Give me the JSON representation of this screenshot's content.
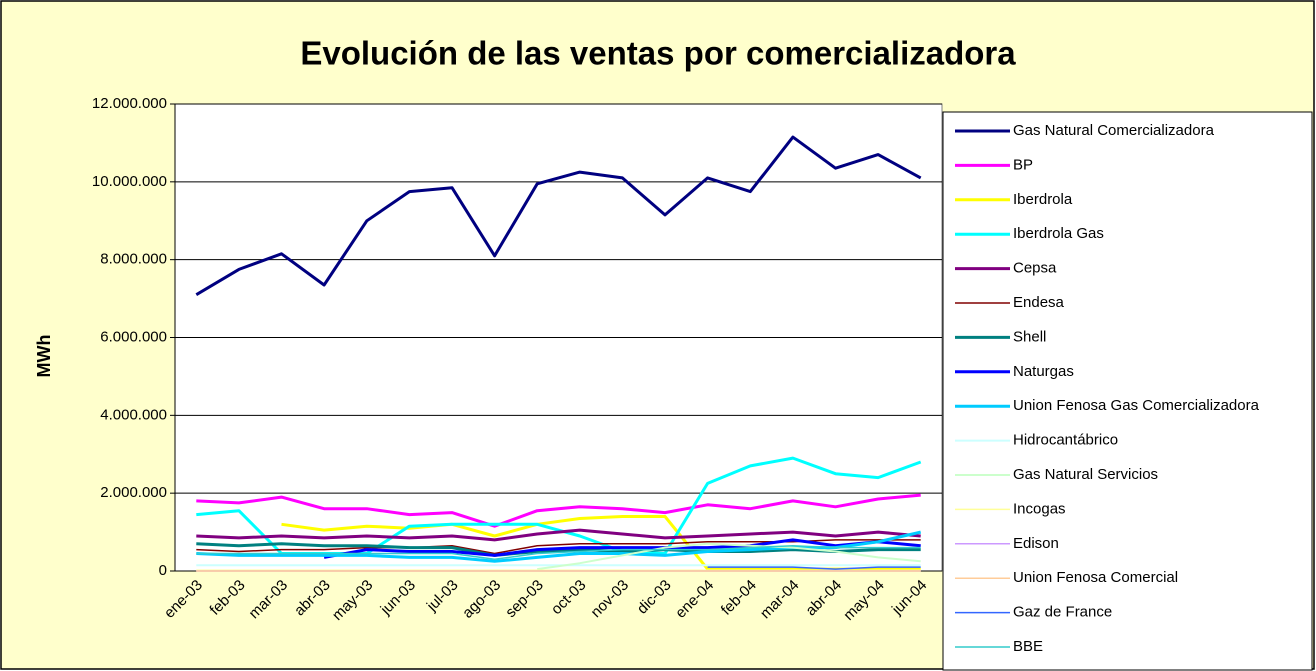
{
  "chart_data": {
    "type": "line",
    "title": "Evolución de las ventas por comercializadora",
    "y_label": "MWh",
    "categories": [
      "ene-03",
      "feb-03",
      "mar-03",
      "abr-03",
      "may-03",
      "jun-03",
      "jul-03",
      "ago-03",
      "sep-03",
      "oct-03",
      "nov-03",
      "dic-03",
      "ene-04",
      "feb-04",
      "mar-04",
      "abr-04",
      "may-04",
      "jun-04"
    ],
    "ylim": [
      0,
      12000000
    ],
    "yticks": [
      0,
      {
        "value": 2000000,
        "label": "2.000.000"
      },
      {
        "value": 4000000,
        "label": "4.000.000"
      },
      {
        "value": 6000000,
        "label": "6.000.000"
      },
      {
        "value": 8000000,
        "label": "8.000.000"
      },
      {
        "value": 10000000,
        "label": "10.000.000"
      },
      {
        "value": 12000000,
        "label": "12.000.000"
      }
    ],
    "grid": true,
    "legend": "right",
    "series": [
      {
        "name": "Gas Natural Comercializadora",
        "color": "#000080",
        "values": [
          7100000,
          7750000,
          8150000,
          7350000,
          9000000,
          9750000,
          9850000,
          8100000,
          9950000,
          10250000,
          10100000,
          9150000,
          10100000,
          9750000,
          11150000,
          10350000,
          10700000,
          10100000
        ]
      },
      {
        "name": "BP",
        "color": "#ff00ff",
        "values": [
          1800000,
          1750000,
          1900000,
          1600000,
          1600000,
          1450000,
          1500000,
          1150000,
          1550000,
          1650000,
          1600000,
          1500000,
          1700000,
          1600000,
          1800000,
          1650000,
          1850000,
          1950000
        ]
      },
      {
        "name": "Iberdrola",
        "color": "#ffff00",
        "values": [
          null,
          null,
          1200000,
          1050000,
          1150000,
          1100000,
          1200000,
          900000,
          1200000,
          1350000,
          1400000,
          1400000,
          50000,
          50000,
          50000,
          50000,
          50000,
          50000
        ]
      },
      {
        "name": "Iberdrola Gas",
        "color": "#00ffff",
        "values": [
          1450000,
          1550000,
          450000,
          450000,
          450000,
          1150000,
          1200000,
          1200000,
          1200000,
          900000,
          500000,
          450000,
          2250000,
          2700000,
          2900000,
          2500000,
          2400000,
          2800000
        ]
      },
      {
        "name": "Cepsa",
        "color": "#800080",
        "values": [
          900000,
          850000,
          900000,
          850000,
          900000,
          850000,
          900000,
          800000,
          950000,
          1050000,
          950000,
          850000,
          900000,
          950000,
          1000000,
          900000,
          1000000,
          900000
        ]
      },
      {
        "name": "Endesa",
        "color": "#800000",
        "values": [
          550000,
          500000,
          550000,
          550000,
          600000,
          600000,
          650000,
          450000,
          650000,
          700000,
          700000,
          700000,
          750000,
          750000,
          750000,
          800000,
          800000,
          800000
        ]
      },
      {
        "name": "Shell",
        "color": "#008080",
        "values": [
          700000,
          650000,
          700000,
          650000,
          650000,
          600000,
          600000,
          400000,
          500000,
          550000,
          500000,
          550000,
          500000,
          500000,
          550000,
          500000,
          550000,
          550000
        ]
      },
      {
        "name": "Naturgas",
        "color": "#0000ff",
        "values": [
          null,
          null,
          null,
          350000,
          550000,
          500000,
          500000,
          400000,
          550000,
          600000,
          600000,
          600000,
          600000,
          650000,
          800000,
          650000,
          750000,
          650000
        ]
      },
      {
        "name": "Union Fenosa Gas Comercializadora",
        "color": "#00ccff",
        "values": [
          450000,
          400000,
          400000,
          400000,
          400000,
          350000,
          350000,
          250000,
          350000,
          450000,
          450000,
          400000,
          500000,
          550000,
          600000,
          600000,
          750000,
          1000000
        ]
      },
      {
        "name": "Hidrocantábrico",
        "color": "#ccffff",
        "values": [
          150000,
          150000,
          150000,
          150000,
          150000,
          150000,
          150000,
          150000,
          150000,
          150000,
          150000,
          150000,
          150000,
          150000,
          150000,
          150000,
          150000,
          150000
        ]
      },
      {
        "name": "Gas Natural Servicios",
        "color": "#ccffcc",
        "values": [
          null,
          null,
          null,
          null,
          null,
          null,
          null,
          null,
          50000,
          200000,
          400000,
          600000,
          700000,
          650000,
          600000,
          500000,
          350000,
          250000
        ]
      },
      {
        "name": "Incogas",
        "color": "#ffff99",
        "values": [
          20000,
          20000,
          20000,
          20000,
          20000,
          20000,
          20000,
          20000,
          20000,
          20000,
          20000,
          20000,
          20000,
          20000,
          20000,
          20000,
          20000,
          20000
        ]
      },
      {
        "name": "Edison",
        "color": "#cc99ff",
        "values": [
          0,
          0,
          0,
          0,
          0,
          0,
          0,
          0,
          0,
          0,
          0,
          0,
          0,
          0,
          0,
          0,
          0,
          0
        ]
      },
      {
        "name": "Union Fenosa Comercial",
        "color": "#ffcc99",
        "values": [
          0,
          0,
          0,
          0,
          0,
          0,
          0,
          0,
          0,
          0,
          0,
          0,
          0,
          0,
          0,
          0,
          0,
          0
        ]
      },
      {
        "name": "Gaz de France",
        "color": "#3366ff",
        "values": [
          null,
          null,
          null,
          null,
          null,
          null,
          null,
          null,
          null,
          null,
          null,
          null,
          100000,
          100000,
          100000,
          50000,
          100000,
          100000
        ]
      },
      {
        "name": "BBE",
        "color": "#33cccc",
        "values": [
          450000,
          450000,
          450000,
          450000,
          450000,
          450000,
          450000,
          300000,
          450000,
          500000,
          550000,
          550000,
          550000,
          600000,
          650000,
          600000,
          600000,
          600000
        ]
      }
    ]
  }
}
